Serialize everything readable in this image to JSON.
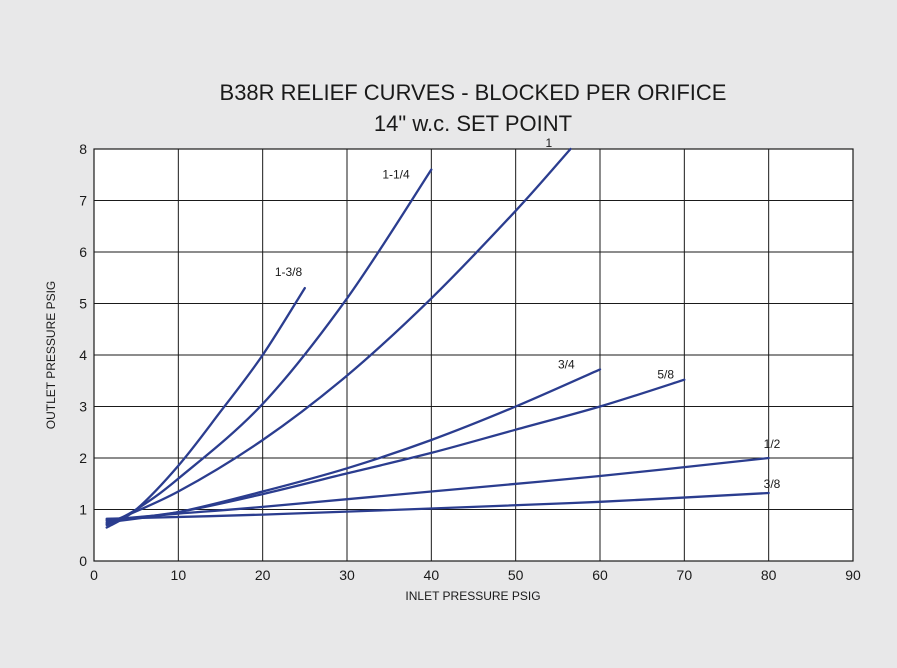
{
  "chart_data": {
    "type": "line",
    "title": "B38R RELIEF CURVES - BLOCKED PER ORIFICE",
    "subtitle": "14\" w.c. SET POINT",
    "xlabel": "INLET  PRESSURE PSIG",
    "ylabel": "OUTLET PRESSURE PSIG",
    "xlim": [
      0,
      90
    ],
    "ylim": [
      0,
      8
    ],
    "x_ticks": [
      "0",
      "10",
      "20",
      "30",
      "40",
      "50",
      "60",
      "70",
      "80",
      "90"
    ],
    "y_ticks": [
      "0",
      "1",
      "2",
      "3",
      "4",
      "5",
      "6",
      "7",
      "8"
    ],
    "grid": true,
    "line_color": "#2b3d8f",
    "series": [
      {
        "name": "1-3/8",
        "x": [
          1.5,
          5,
          10,
          15,
          20,
          25
        ],
        "y": [
          0.65,
          1.0,
          1.85,
          2.9,
          4.0,
          5.3
        ]
      },
      {
        "name": "1-1/4",
        "x": [
          1.5,
          5,
          10,
          20,
          30,
          40
        ],
        "y": [
          0.7,
          1.0,
          1.6,
          3.05,
          5.1,
          7.6
        ]
      },
      {
        "name": "1",
        "x": [
          1.5,
          10,
          20,
          30,
          40,
          50,
          56.5
        ],
        "y": [
          0.72,
          1.35,
          2.35,
          3.6,
          5.1,
          6.8,
          8.0
        ]
      },
      {
        "name": "3/4",
        "x": [
          1.5,
          10,
          20,
          30,
          40,
          50,
          60
        ],
        "y": [
          0.75,
          0.95,
          1.35,
          1.8,
          2.35,
          3.0,
          3.72
        ]
      },
      {
        "name": "5/8",
        "x": [
          1.5,
          10,
          20,
          30,
          40,
          50,
          60,
          70
        ],
        "y": [
          0.78,
          0.95,
          1.3,
          1.7,
          2.1,
          2.55,
          3.0,
          3.52
        ]
      },
      {
        "name": "1/2",
        "x": [
          1.5,
          10,
          20,
          40,
          60,
          80
        ],
        "y": [
          0.8,
          0.92,
          1.05,
          1.35,
          1.65,
          2.0
        ]
      },
      {
        "name": "3/8",
        "x": [
          1.5,
          20,
          40,
          60,
          80
        ],
        "y": [
          0.82,
          0.9,
          1.02,
          1.15,
          1.32
        ]
      }
    ]
  }
}
